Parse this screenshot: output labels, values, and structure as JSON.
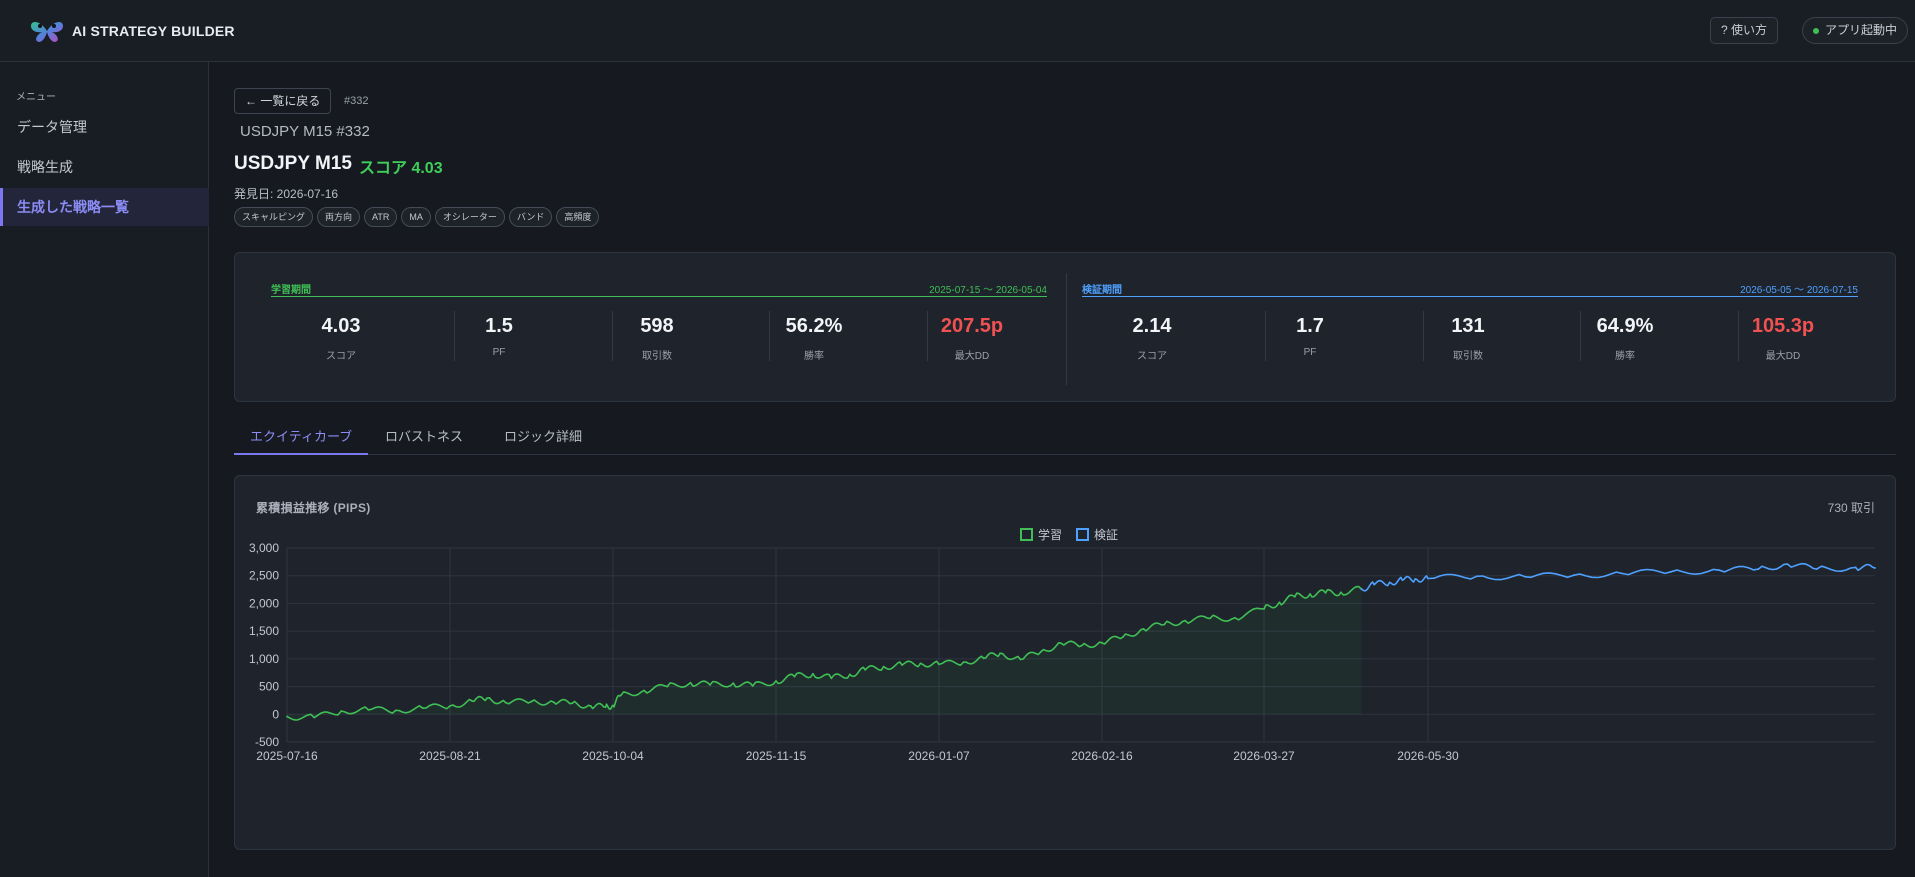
{
  "app": {
    "title": "AI STRATEGY BUILDER"
  },
  "header": {
    "help_label": "? 使い方",
    "status_label": "アプリ起動中"
  },
  "sidebar": {
    "menu_label": "メニュー",
    "items": [
      {
        "label": "データ管理"
      },
      {
        "label": "戦略生成"
      },
      {
        "label": "生成した戦略一覧"
      }
    ]
  },
  "strategy": {
    "back_label": "← 一覧に戻る",
    "id_tag": "#332",
    "subtitle": "USDJPY M15 #332",
    "title": "USDJPY M15",
    "score_label": "スコア 4.03",
    "found_date": "発見日: 2026-07-16",
    "tags": [
      "スキャルピング",
      "両方向",
      "ATR",
      "MA",
      "オシレーター",
      "バンド",
      "高頻度"
    ]
  },
  "stats": {
    "train": {
      "name": "学習期間",
      "range": "2025-07-15 〜 2026-05-04",
      "color": "#3fbf55",
      "metrics": [
        {
          "value": "4.03",
          "label": "スコア",
          "red": false
        },
        {
          "value": "1.5",
          "label": "PF",
          "red": false
        },
        {
          "value": "598",
          "label": "取引数",
          "red": false
        },
        {
          "value": "56.2%",
          "label": "勝率",
          "red": false
        },
        {
          "value": "207.5p",
          "label": "最大DD",
          "red": true
        }
      ]
    },
    "valid": {
      "name": "検証期間",
      "range": "2026-05-05 〜 2026-07-15",
      "color": "#4ea1ff",
      "metrics": [
        {
          "value": "2.14",
          "label": "スコア",
          "red": false
        },
        {
          "value": "1.7",
          "label": "PF",
          "red": false
        },
        {
          "value": "131",
          "label": "取引数",
          "red": false
        },
        {
          "value": "64.9%",
          "label": "勝率",
          "red": false
        },
        {
          "value": "105.3p",
          "label": "最大DD",
          "red": true
        }
      ]
    }
  },
  "tabs": [
    {
      "label": "エクイティカーブ"
    },
    {
      "label": "ロバストネス"
    },
    {
      "label": "ロジック詳細"
    }
  ],
  "chart": {
    "title": "累積損益推移 (PIPS)",
    "trade_count": "730 取引"
  },
  "chart_data": {
    "type": "line",
    "title": "累積損益推移 (PIPS)",
    "xlabel": "",
    "ylabel": "",
    "x_ticks": [
      "2025-07-16",
      "2025-08-21",
      "2025-10-04",
      "2025-11-15",
      "2026-01-07",
      "2026-02-16",
      "2026-03-27",
      "2026-05-30"
    ],
    "y_ticks": [
      "3,000",
      "2,500",
      "2,000",
      "1,500",
      "1,000",
      "500",
      "0",
      "-500"
    ],
    "ylim": [
      -500,
      3000
    ],
    "grid": true,
    "legend": "top-center",
    "series": [
      {
        "name": "学習",
        "color": "#3fbf55",
        "area": true,
        "points": [
          [
            "2025-07-16",
            -40
          ],
          [
            "2025-07-22",
            -60
          ],
          [
            "2025-07-28",
            60
          ],
          [
            "2025-08-03",
            80
          ],
          [
            "2025-08-09",
            70
          ],
          [
            "2025-08-15",
            110
          ],
          [
            "2025-08-21",
            150
          ],
          [
            "2025-08-27",
            240
          ],
          [
            "2025-08-31",
            290
          ],
          [
            "2025-09-05",
            210
          ],
          [
            "2025-09-12",
            230
          ],
          [
            "2025-09-18",
            220
          ],
          [
            "2025-09-23",
            200
          ],
          [
            "2025-09-28",
            150
          ],
          [
            "2025-10-02",
            130
          ],
          [
            "2025-10-04",
            160
          ],
          [
            "2025-10-06",
            340
          ],
          [
            "2025-10-12",
            430
          ],
          [
            "2025-10-18",
            500
          ],
          [
            "2025-10-24",
            570
          ],
          [
            "2025-10-29",
            530
          ],
          [
            "2025-11-04",
            560
          ],
          [
            "2025-11-09",
            510
          ],
          [
            "2025-11-15",
            600
          ],
          [
            "2025-11-21",
            680
          ],
          [
            "2025-11-27",
            730
          ],
          [
            "2025-12-03",
            650
          ],
          [
            "2025-12-09",
            720
          ],
          [
            "2025-12-14",
            800
          ],
          [
            "2025-12-20",
            860
          ],
          [
            "2025-12-26",
            890
          ],
          [
            "2026-01-01",
            920
          ],
          [
            "2026-01-07",
            900
          ],
          [
            "2026-01-13",
            940
          ],
          [
            "2026-01-18",
            1010
          ],
          [
            "2026-01-22",
            1100
          ],
          [
            "2026-01-27",
            990
          ],
          [
            "2026-02-01",
            1130
          ],
          [
            "2026-02-06",
            1280
          ],
          [
            "2026-02-11",
            1240
          ],
          [
            "2026-02-16",
            1290
          ],
          [
            "2026-02-21",
            1390
          ],
          [
            "2026-02-26",
            1540
          ],
          [
            "2026-03-03",
            1620
          ],
          [
            "2026-03-08",
            1690
          ],
          [
            "2026-03-14",
            1730
          ],
          [
            "2026-03-20",
            1740
          ],
          [
            "2026-03-27",
            1900
          ],
          [
            "2026-04-02",
            2020
          ],
          [
            "2026-04-08",
            2120
          ],
          [
            "2026-04-14",
            2170
          ],
          [
            "2026-04-20",
            2190
          ],
          [
            "2026-04-26",
            2200
          ],
          [
            "2026-05-04",
            2260
          ]
        ]
      },
      {
        "name": "検証",
        "color": "#4ea1ff",
        "area": false,
        "points": [
          [
            "2026-05-04",
            2260
          ],
          [
            "2026-05-09",
            2340
          ],
          [
            "2026-05-15",
            2380
          ],
          [
            "2026-05-20",
            2420
          ],
          [
            "2026-05-25",
            2440
          ],
          [
            "2026-05-30",
            2450
          ],
          [
            "2026-06-04",
            2490
          ],
          [
            "2026-06-09",
            2480
          ],
          [
            "2026-06-14",
            2510
          ],
          [
            "2026-06-19",
            2540
          ],
          [
            "2026-06-24",
            2570
          ],
          [
            "2026-06-29",
            2600
          ],
          [
            "2026-07-03",
            2620
          ],
          [
            "2026-07-06",
            2710
          ],
          [
            "2026-07-09",
            2620
          ],
          [
            "2026-07-13",
            2650
          ],
          [
            "2026-07-15",
            2640
          ]
        ]
      }
    ]
  }
}
